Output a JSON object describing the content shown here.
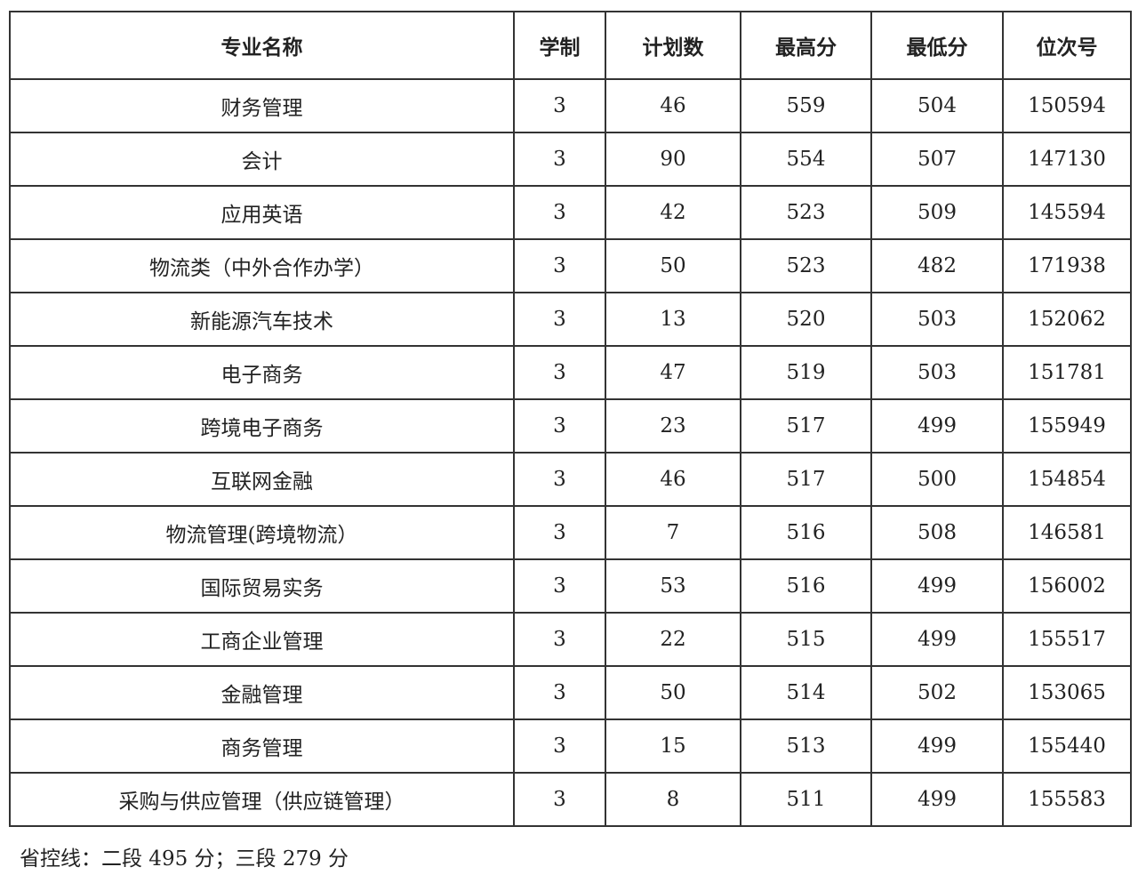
{
  "table": {
    "headers": [
      "专业名称",
      "学制",
      "计划数",
      "最高分",
      "最低分",
      "位次号"
    ],
    "rows": [
      [
        "财务管理",
        "3",
        "46",
        "559",
        "504",
        "150594"
      ],
      [
        "会计",
        "3",
        "90",
        "554",
        "507",
        "147130"
      ],
      [
        "应用英语",
        "3",
        "42",
        "523",
        "509",
        "145594"
      ],
      [
        "物流类（中外合作办学）",
        "3",
        "50",
        "523",
        "482",
        "171938"
      ],
      [
        "新能源汽车技术",
        "3",
        "13",
        "520",
        "503",
        "152062"
      ],
      [
        "电子商务",
        "3",
        "47",
        "519",
        "503",
        "151781"
      ],
      [
        "跨境电子商务",
        "3",
        "23",
        "517",
        "499",
        "155949"
      ],
      [
        "互联网金融",
        "3",
        "46",
        "517",
        "500",
        "154854"
      ],
      [
        "物流管理(跨境物流）",
        "3",
        "7",
        "516",
        "508",
        "146581"
      ],
      [
        "国际贸易实务",
        "3",
        "53",
        "516",
        "499",
        "156002"
      ],
      [
        "工商企业管理",
        "3",
        "22",
        "515",
        "499",
        "155517"
      ],
      [
        "金融管理",
        "3",
        "50",
        "514",
        "502",
        "153065"
      ],
      [
        "商务管理",
        "3",
        "15",
        "513",
        "499",
        "155440"
      ],
      [
        "采购与供应管理（供应链管理）",
        "3",
        "8",
        "511",
        "499",
        "155583"
      ]
    ]
  },
  "footnote": "省控线：二段 495 分；三段 279 分"
}
